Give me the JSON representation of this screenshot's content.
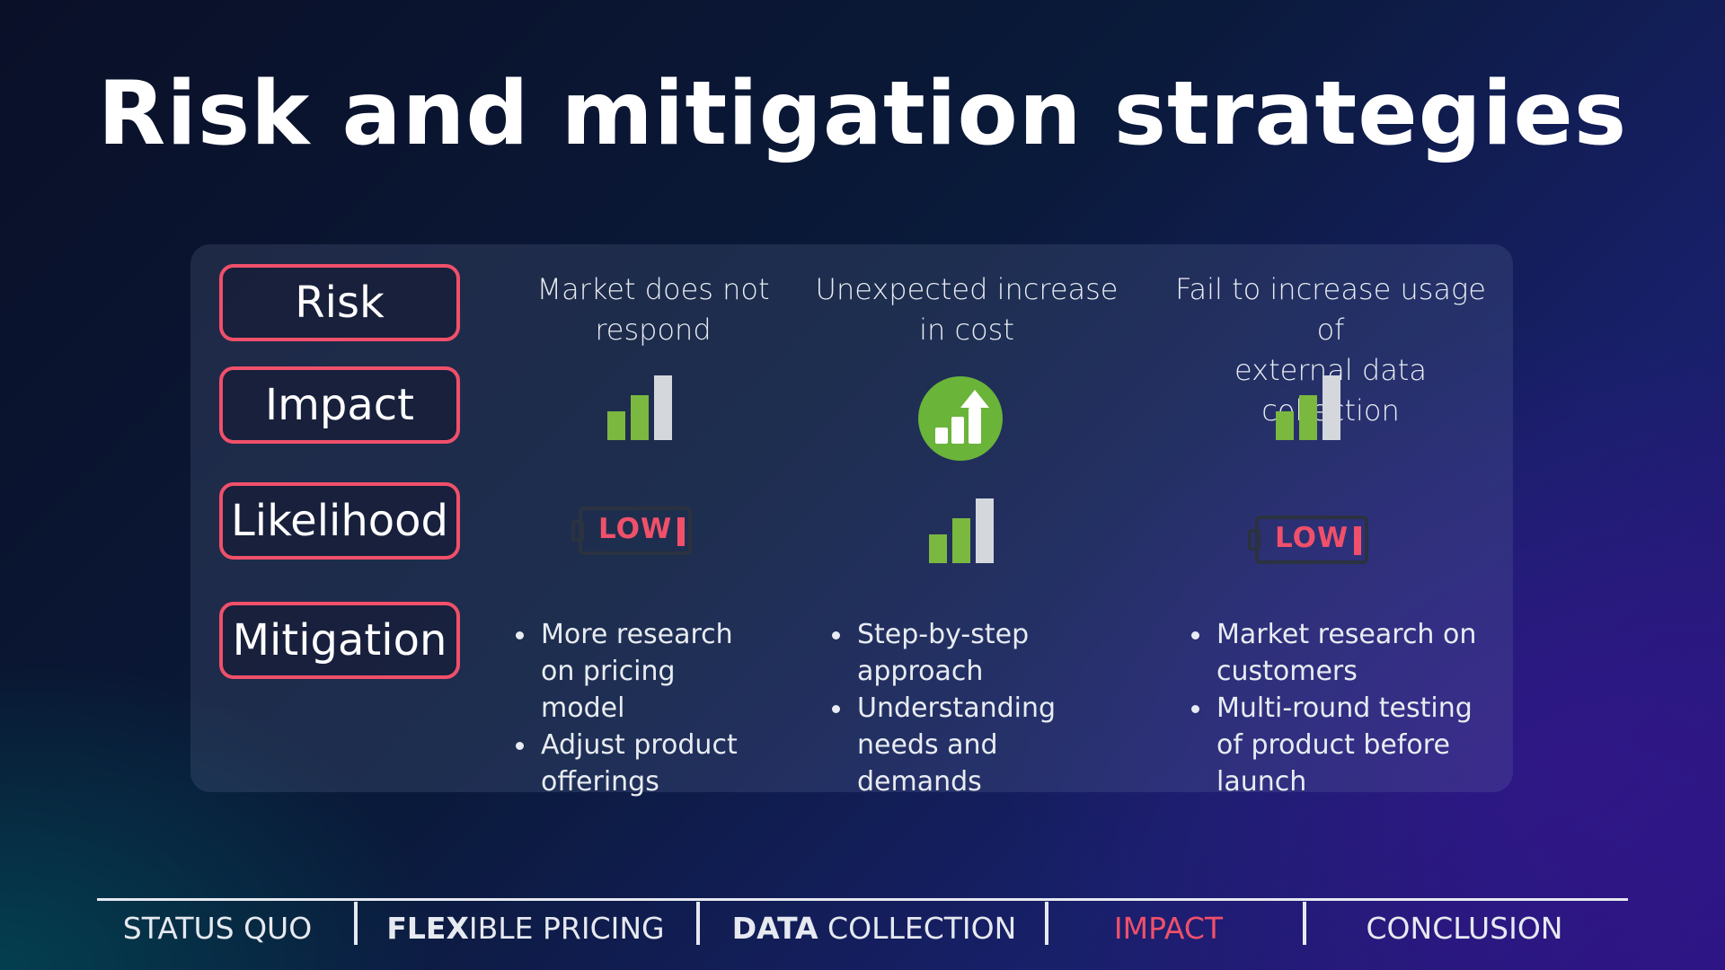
{
  "title": "Risk and mitigation strategies",
  "row_labels": {
    "risk": "Risk",
    "impact": "Impact",
    "likelihood": "Likelihood",
    "mitigation": "Mitigation"
  },
  "columns": [
    {
      "risk_line1": "Market does not",
      "risk_line2": "respond",
      "impact_icon": "signal-bars-icon",
      "likelihood_icon": "low-battery-icon",
      "likelihood_badge": "LOW",
      "mitigation": [
        "More research on pricing model",
        "Adjust product offerings"
      ]
    },
    {
      "risk_line1": "Unexpected increase",
      "risk_line2": "in cost",
      "impact_icon": "chart-up-arrow-circle-icon",
      "likelihood_icon": "signal-bars-icon",
      "mitigation": [
        "Step-by-step approach",
        "Understanding needs and demands"
      ]
    },
    {
      "risk_line1": "Fail to increase usage of",
      "risk_line2": "external data collection",
      "impact_icon": "signal-bars-icon",
      "likelihood_icon": "low-battery-icon",
      "likelihood_badge": "LOW",
      "mitigation": [
        "Market research on customers",
        "Multi-round testing of product before launch"
      ]
    }
  ],
  "nav": {
    "status_quo": "STATUS QUO",
    "flexible_bold": "FLEX",
    "flexible_rest": "IBLE PRICING",
    "data_bold": "DATA",
    "data_rest": " COLLECTION",
    "impact": "IMPACT",
    "conclusion": "CONCLUSION",
    "active": "IMPACT"
  },
  "colors": {
    "accent": "#f0506a",
    "bar_green": "#7ab840",
    "bar_gray": "#d4d8dc",
    "circle_green": "#6ab43a"
  }
}
